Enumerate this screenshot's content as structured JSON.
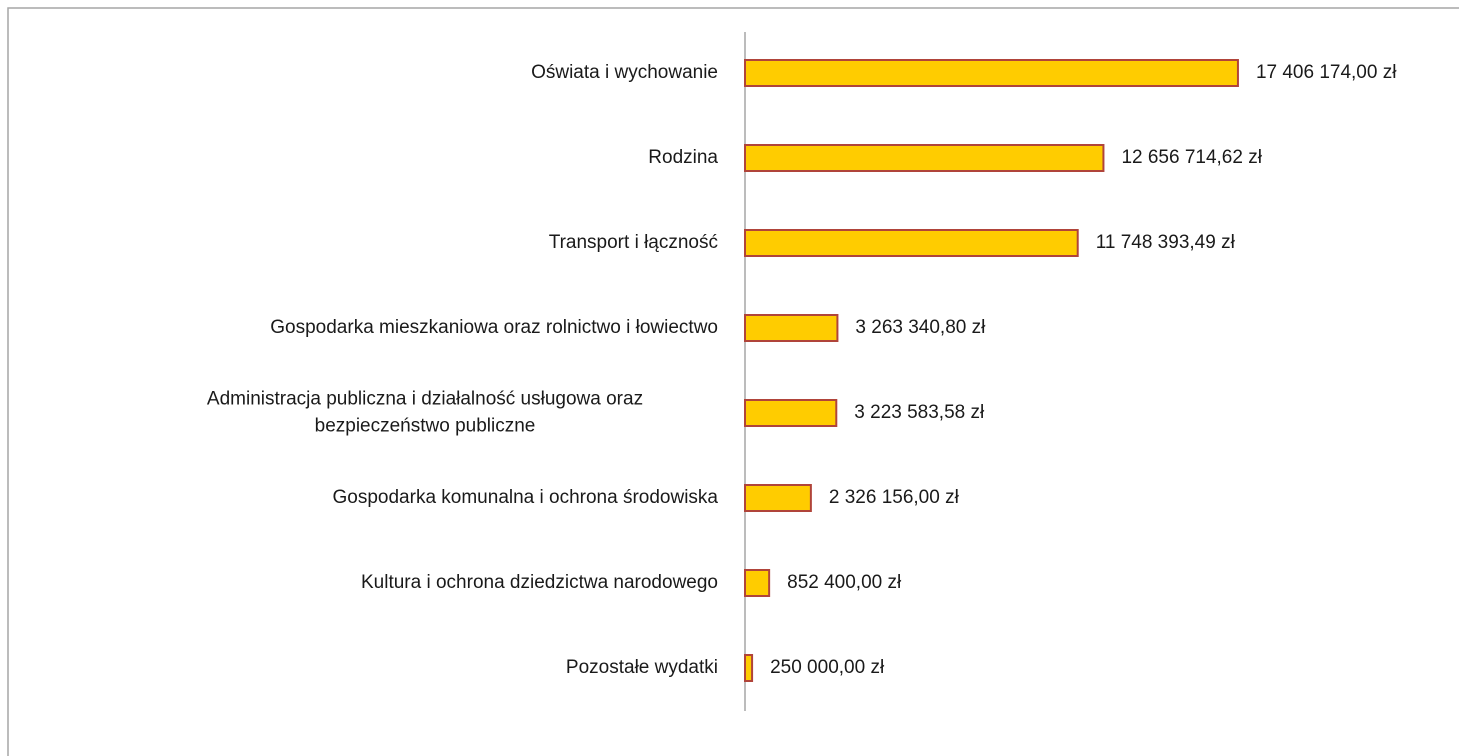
{
  "chart_data": {
    "type": "bar",
    "orientation": "horizontal",
    "categories": [
      "Oświata i wychowanie",
      "Rodzina",
      "Transport i łączność",
      "Gospodarka mieszkaniowa oraz rolnictwo i łowiectwo",
      "Administracja publiczna i działalność usługowa oraz\nbezpieczeństwo publiczne",
      "Gospodarka komunalna i ochrona środowiska",
      "Kultura i ochrona dziedzictwa narodowego",
      "Pozostałe wydatki"
    ],
    "values": [
      17406174.0,
      12656714.62,
      11748393.49,
      3263340.8,
      3223583.58,
      2326156.0,
      852400.0,
      250000.0
    ],
    "value_labels": [
      "17 406 174,00 zł",
      "12 656 714,62 zł",
      "11 748 393,49 zł",
      "3 263 340,80 zł",
      "3 223 583,58 zł",
      "2 326 156,00 zł",
      "852 400,00 zł",
      "250 000,00 zł"
    ],
    "color": "#ffcc00",
    "edge_color": "#b0443a",
    "xlim": [
      0,
      25000000
    ]
  }
}
